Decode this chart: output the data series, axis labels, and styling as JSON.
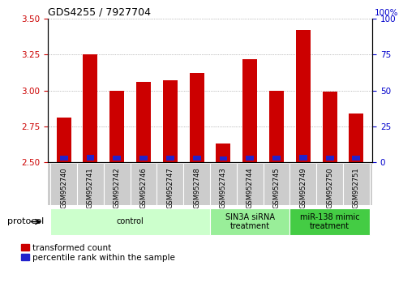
{
  "title": "GDS4255 / 7927704",
  "samples": [
    "GSM952740",
    "GSM952741",
    "GSM952742",
    "GSM952746",
    "GSM952747",
    "GSM952748",
    "GSM952743",
    "GSM952744",
    "GSM952745",
    "GSM952749",
    "GSM952750",
    "GSM952751"
  ],
  "red_values": [
    2.81,
    3.25,
    3.0,
    3.06,
    3.07,
    3.12,
    2.63,
    3.22,
    3.0,
    3.42,
    2.99,
    2.84
  ],
  "blue_heights": [
    0.035,
    0.04,
    0.035,
    0.038,
    0.037,
    0.038,
    0.03,
    0.038,
    0.035,
    0.042,
    0.036,
    0.033
  ],
  "ylim_left": [
    2.5,
    3.5
  ],
  "ylim_right": [
    0,
    100
  ],
  "yticks_left": [
    2.5,
    2.75,
    3.0,
    3.25,
    3.5
  ],
  "yticks_right": [
    0,
    25,
    50,
    75,
    100
  ],
  "bar_color_red": "#cc0000",
  "bar_color_blue": "#2222cc",
  "base": 2.5,
  "groups": [
    {
      "label": "control",
      "start": 0,
      "end": 6,
      "color": "#ccffcc"
    },
    {
      "label": "SIN3A siRNA\ntreatment",
      "start": 6,
      "end": 9,
      "color": "#99ee99"
    },
    {
      "label": "miR-138 mimic\ntreatment",
      "start": 9,
      "end": 12,
      "color": "#44cc44"
    }
  ],
  "protocol_label": "protocol",
  "legend_red": "transformed count",
  "legend_blue": "percentile rank within the sample",
  "grid_color": "#888888",
  "tick_label_color_left": "#cc0000",
  "tick_label_color_right": "#0000cc",
  "label_color_bg": "#cccccc"
}
